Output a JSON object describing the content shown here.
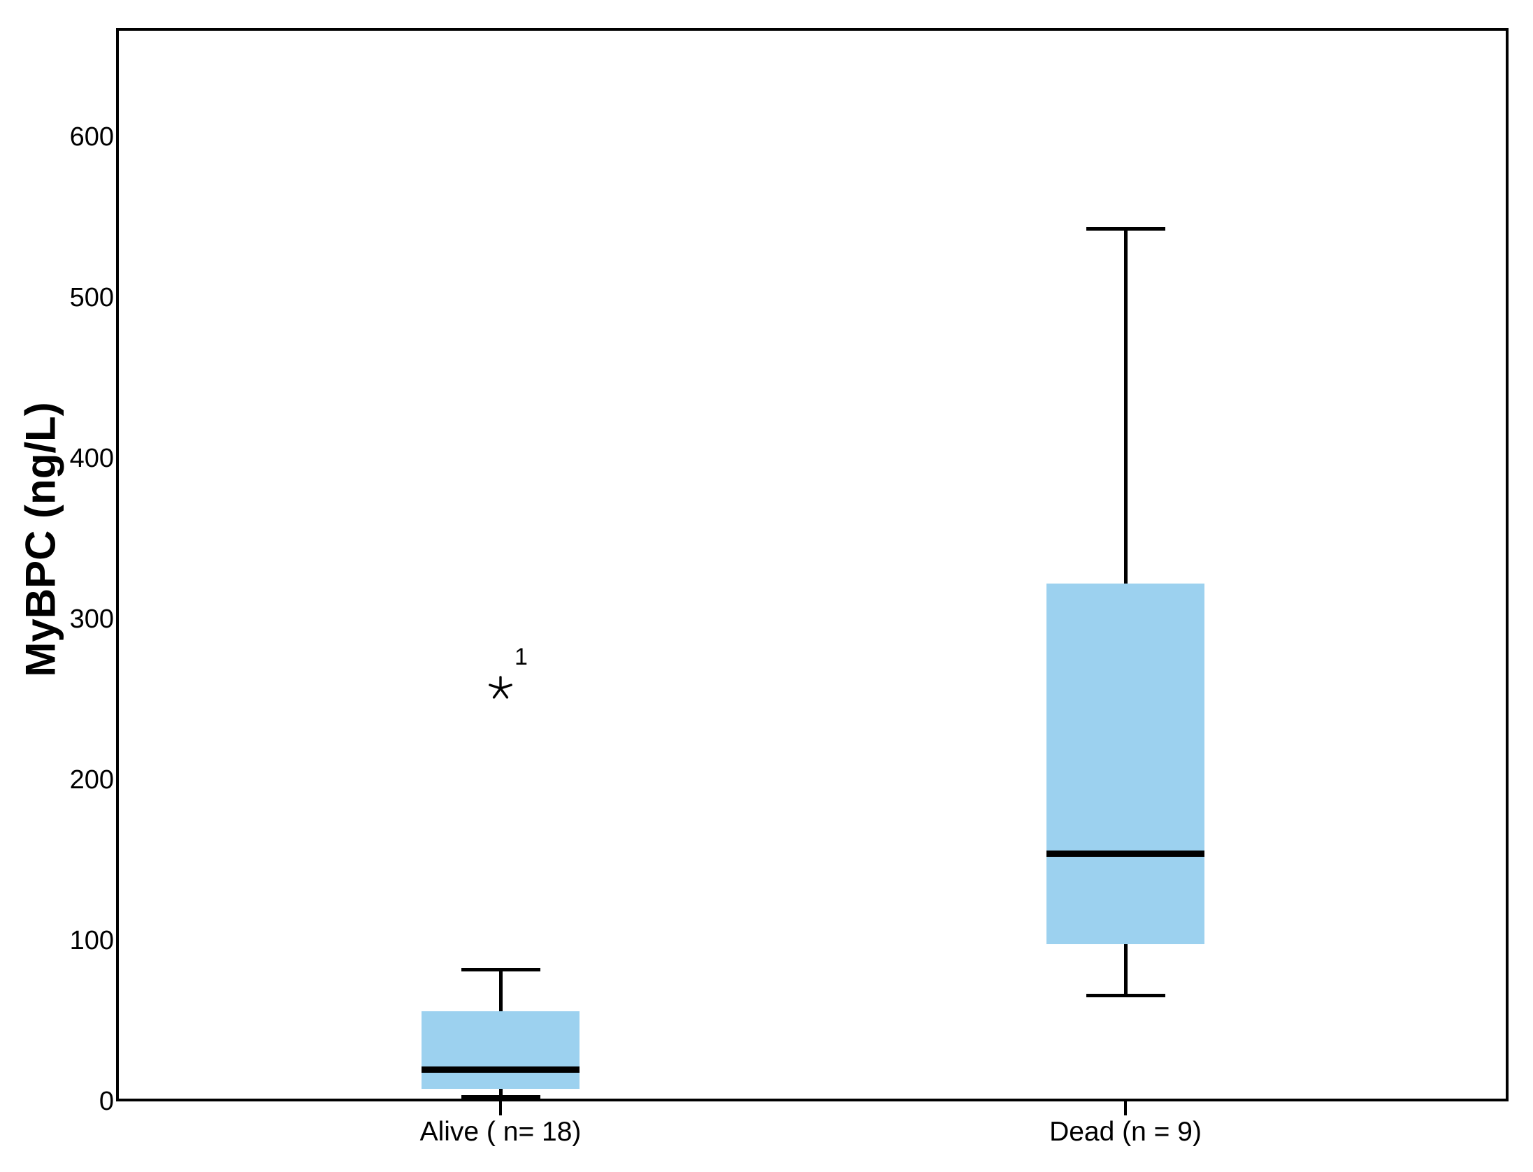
{
  "figure": {
    "background_color": "#ffffff",
    "frame_color": "#000000"
  },
  "chart_data": {
    "type": "boxplot",
    "title": "",
    "xlabel": "",
    "ylabel": "MyBPC (ng/L)",
    "ylim": [
      0,
      667
    ],
    "yticks": [
      0,
      100,
      200,
      300,
      400,
      500,
      600
    ],
    "grid": false,
    "legend": "none",
    "box_fill_color": "#9CD1EF",
    "line_color": "#000000",
    "categories": [
      "Alive ( n= 18)",
      "Dead (n = 9)"
    ],
    "series": [
      {
        "name": "Alive ( n= 18)",
        "whisker_low": 3,
        "q1": 8,
        "median": 20,
        "q3": 56,
        "whisker_high": 82,
        "outliers": [
          {
            "value": 257,
            "label": "1",
            "marker": "star"
          }
        ]
      },
      {
        "name": "Dead (n = 9)",
        "whisker_low": 66,
        "q1": 98,
        "median": 154,
        "q3": 322,
        "whisker_high": 543,
        "outliers": []
      }
    ]
  }
}
